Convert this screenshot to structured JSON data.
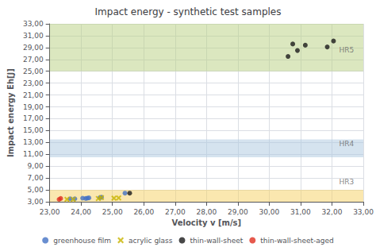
{
  "chart_data": {
    "type": "scatter",
    "title": "Impact energy - synthetic test samples",
    "xlabel": "Velocity v [m/s]",
    "ylabel": "Impact energy Eh[J]",
    "xlim": [
      23.0,
      33.0
    ],
    "ylim": [
      3.0,
      33.0
    ],
    "xticks": [
      {
        "value": 23.0,
        "label": "23,00"
      },
      {
        "value": 24.0,
        "label": "24,00"
      },
      {
        "value": 25.0,
        "label": "25,00"
      },
      {
        "value": 26.0,
        "label": "26,00"
      },
      {
        "value": 27.0,
        "label": "27,00"
      },
      {
        "value": 28.0,
        "label": "28,00"
      },
      {
        "value": 29.0,
        "label": "29,00"
      },
      {
        "value": 30.0,
        "label": "30,00"
      },
      {
        "value": 31.0,
        "label": "31,00"
      },
      {
        "value": 32.0,
        "label": "32,00"
      },
      {
        "value": 33.0,
        "label": "33,00"
      }
    ],
    "yticks": [
      {
        "value": 3.0,
        "label": "3,00"
      },
      {
        "value": 5.0,
        "label": "5,00"
      },
      {
        "value": 7.0,
        "label": "7,00"
      },
      {
        "value": 9.0,
        "label": "9,00"
      },
      {
        "value": 11.0,
        "label": "11,00"
      },
      {
        "value": 13.0,
        "label": "13,00"
      },
      {
        "value": 15.0,
        "label": "15,00"
      },
      {
        "value": 17.0,
        "label": "17,00"
      },
      {
        "value": 19.0,
        "label": "19,00"
      },
      {
        "value": 21.0,
        "label": "21,00"
      },
      {
        "value": 23.0,
        "label": "23,00"
      },
      {
        "value": 25.0,
        "label": "25,00"
      },
      {
        "value": 27.0,
        "label": "27,00"
      },
      {
        "value": 29.0,
        "label": "29,00"
      },
      {
        "value": 31.0,
        "label": "31,00"
      },
      {
        "value": 33.0,
        "label": "33,00"
      }
    ],
    "grid": true,
    "legend": "bottom",
    "bands": [
      {
        "ymin": 3.0,
        "ymax": 5.0,
        "color": "#f5d060"
      },
      {
        "ymin": 10.5,
        "ymax": 13.5,
        "color": "#abc8e0"
      },
      {
        "ymin": 25.0,
        "ymax": 33.0,
        "color": "#b8d080"
      }
    ],
    "annotations": [
      {
        "text": "HR3",
        "x": 32.7,
        "y": 6.4
      },
      {
        "text": "HR4",
        "x": 32.7,
        "y": 12.8
      },
      {
        "text": "HR5",
        "x": 32.7,
        "y": 28.6
      }
    ],
    "series": [
      {
        "name": "greenhouse film",
        "marker": "circle",
        "color": "#4472c4",
        "x": [
          23.65,
          23.8,
          24.05,
          24.15,
          24.2,
          24.25,
          24.6,
          24.65,
          25.4
        ],
        "values": [
          3.5,
          3.5,
          3.6,
          3.55,
          3.6,
          3.65,
          3.7,
          3.75,
          4.45
        ]
      },
      {
        "name": "acrylic glass",
        "marker": "x",
        "color": "#c8b400",
        "x": [
          23.55,
          23.75,
          24.55,
          24.65,
          25.05,
          25.2
        ],
        "values": [
          3.4,
          3.4,
          3.55,
          3.7,
          3.6,
          3.65
        ]
      },
      {
        "name": "thin-wall-sheet",
        "marker": "circle",
        "color": "#1a1a1a",
        "x": [
          25.55,
          30.6,
          30.75,
          30.9,
          31.15,
          31.85,
          32.05
        ],
        "values": [
          4.45,
          27.5,
          29.6,
          28.5,
          29.4,
          29.1,
          30.1
        ]
      },
      {
        "name": "thin-wall-sheet-aged",
        "marker": "circle",
        "color": "#e03020",
        "x": [
          23.3,
          23.35
        ],
        "values": [
          3.4,
          3.55
        ]
      }
    ]
  }
}
